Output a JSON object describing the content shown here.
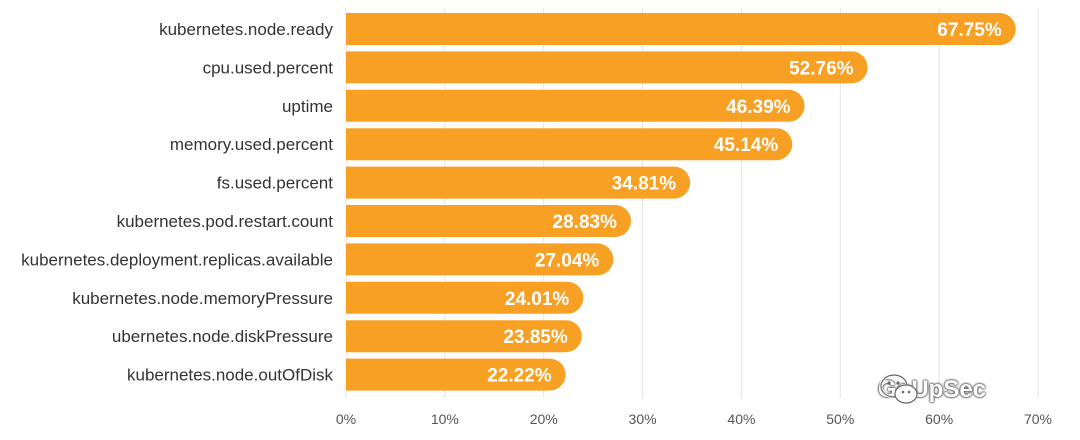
{
  "chart_data": {
    "type": "bar",
    "orientation": "horizontal",
    "categories": [
      "kubernetes.node.ready",
      "cpu.used.percent",
      "uptime",
      "memory.used.percent",
      "fs.used.percent",
      "kubernetes.pod.restart.count",
      "kubernetes.deployment.replicas.available",
      "kubernetes.node.memoryPressure",
      "ubernetes.node.diskPressure",
      "kubernetes.node.outOfDisk"
    ],
    "values": [
      67.75,
      52.76,
      46.39,
      45.14,
      34.81,
      28.83,
      27.04,
      24.01,
      23.85,
      22.22
    ],
    "value_labels": [
      "67.75%",
      "52.76%",
      "46.39%",
      "45.14%",
      "34.81%",
      "28.83%",
      "27.04%",
      "24.01%",
      "23.85%",
      "22.22%"
    ],
    "xlim": [
      0,
      70
    ],
    "xticks": [
      0,
      10,
      20,
      30,
      40,
      50,
      60,
      70
    ],
    "xtick_labels": [
      "0%",
      "10%",
      "20%",
      "30%",
      "40%",
      "50%",
      "60%",
      "70%"
    ],
    "grid": true,
    "bar_color": "#f7a023"
  },
  "watermark": {
    "text": "GoUpSec",
    "icon": "wechat-icon"
  }
}
